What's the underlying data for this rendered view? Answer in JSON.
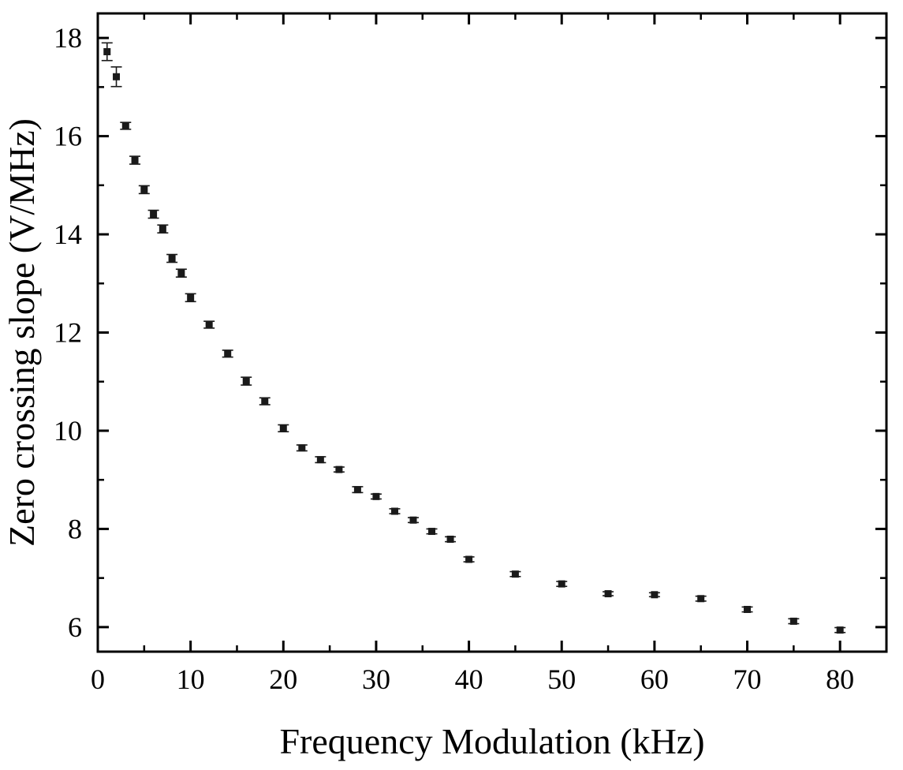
{
  "chart_data": {
    "type": "scatter",
    "title": "",
    "xlabel": "Frequency Modulation (kHz)",
    "ylabel": "Zero crossing slope (V/MHz)",
    "xlim": [
      0,
      85
    ],
    "ylim": [
      5.5,
      18.5
    ],
    "xticks": [
      0,
      10,
      20,
      30,
      40,
      50,
      60,
      70,
      80
    ],
    "yticks": [
      6,
      8,
      10,
      12,
      14,
      16,
      18
    ],
    "xtick_labels": [
      "0",
      "10",
      "20",
      "30",
      "40",
      "50",
      "60",
      "70",
      "80"
    ],
    "ytick_labels": [
      "6",
      "8",
      "10",
      "12",
      "14",
      "16",
      "18"
    ],
    "grid": false,
    "marker": "square",
    "series": [
      {
        "name": "Zero crossing slope",
        "x": [
          1,
          2,
          3,
          4,
          5,
          6,
          7,
          8,
          9,
          10,
          12,
          14,
          16,
          18,
          20,
          22,
          24,
          26,
          28,
          30,
          32,
          34,
          36,
          38,
          40,
          45,
          50,
          55,
          60,
          65,
          70,
          75,
          80
        ],
        "y": [
          17.72,
          17.21,
          16.21,
          15.51,
          14.91,
          14.41,
          14.11,
          13.51,
          13.21,
          12.71,
          12.16,
          11.57,
          11.01,
          10.6,
          10.05,
          9.65,
          9.41,
          9.21,
          8.8,
          8.66,
          8.36,
          8.18,
          7.95,
          7.79,
          7.38,
          7.08,
          6.88,
          6.68,
          6.66,
          6.58,
          6.36,
          6.12,
          5.94
        ],
        "err": [
          0.18,
          0.2,
          0.07,
          0.08,
          0.08,
          0.08,
          0.08,
          0.08,
          0.08,
          0.08,
          0.07,
          0.07,
          0.08,
          0.07,
          0.07,
          0.06,
          0.06,
          0.05,
          0.06,
          0.05,
          0.05,
          0.05,
          0.05,
          0.05,
          0.05,
          0.05,
          0.05,
          0.04,
          0.04,
          0.05,
          0.05,
          0.05,
          0.05
        ]
      }
    ]
  },
  "colors": {
    "marker": "#1a1a1a",
    "axes": "#000000",
    "background": "#ffffff"
  }
}
